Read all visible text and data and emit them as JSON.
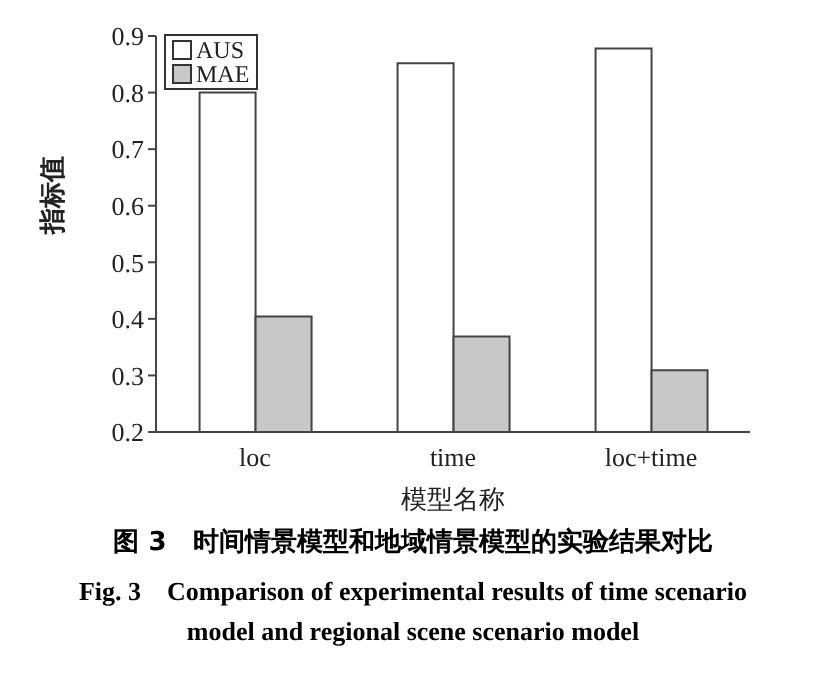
{
  "chart_data": {
    "type": "bar",
    "title": "图 3　时间情景模型和地域情景模型的实验结果对比",
    "subtitle": "Fig. 3　Comparison of experimental results of time scenario model and regional scene scenario model",
    "xlabel": "模型名称",
    "ylabel": "指标值",
    "categories": [
      "loc",
      "time",
      "loc+time"
    ],
    "series": [
      {
        "name": "AUS",
        "color": "#ffffff",
        "values": [
          0.8,
          0.852,
          0.878
        ]
      },
      {
        "name": "MAE",
        "color": "#c8c8c8",
        "values": [
          0.404,
          0.369,
          0.309
        ]
      }
    ],
    "ylim": [
      0.2,
      0.9
    ],
    "yticks": [
      0.2,
      0.3,
      0.4,
      0.5,
      0.6,
      0.7,
      0.8,
      0.9
    ],
    "grid": false,
    "legend": "top left"
  }
}
